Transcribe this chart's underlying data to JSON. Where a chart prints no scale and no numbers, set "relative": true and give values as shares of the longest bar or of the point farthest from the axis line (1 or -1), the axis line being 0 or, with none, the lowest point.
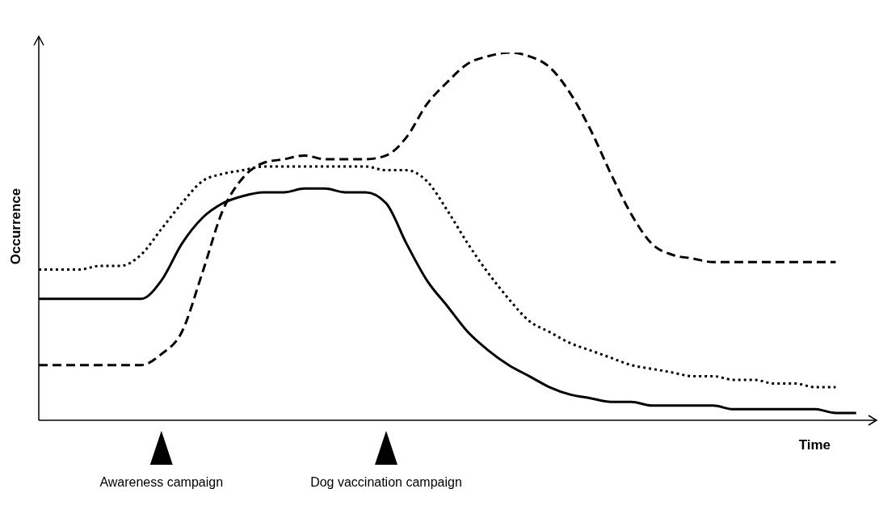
{
  "chart_data": {
    "type": "line",
    "xlabel": "Time",
    "ylabel": "Occurrence",
    "relative": true,
    "tick_labels": false,
    "categories": [
      null,
      null,
      null,
      null,
      null,
      null,
      null,
      null,
      null,
      null,
      null,
      null,
      null,
      null,
      null,
      null,
      null,
      null,
      null,
      null,
      null,
      null,
      null,
      null,
      null,
      null,
      null,
      null,
      null,
      null,
      null,
      null,
      null,
      null,
      null,
      null,
      null,
      null,
      null,
      null,
      null
    ],
    "series": [
      {
        "color": "#000000",
        "line_style": "solid",
        "values": [
          0.33,
          0.33,
          0.33,
          0.33,
          0.33,
          0.33,
          0.38,
          0.48,
          0.55,
          0.59,
          0.61,
          0.62,
          0.62,
          0.63,
          0.63,
          0.62,
          0.62,
          0.59,
          0.48,
          0.38,
          0.31,
          0.24,
          0.19,
          0.15,
          0.12,
          0.09,
          0.07,
          0.06,
          0.05,
          0.05,
          0.04,
          0.04,
          0.04,
          0.04,
          0.03,
          0.03,
          0.03,
          0.03,
          0.03,
          0.02,
          0.02
        ]
      },
      {
        "color": "#000000",
        "line_style": "dotted",
        "values": [
          0.41,
          0.41,
          0.41,
          0.42,
          0.42,
          0.45,
          0.52,
          0.59,
          0.65,
          0.67,
          0.68,
          0.69,
          0.69,
          0.69,
          0.69,
          0.69,
          0.69,
          0.68,
          0.68,
          0.65,
          0.57,
          0.48,
          0.4,
          0.33,
          0.27,
          0.24,
          0.21,
          0.19,
          0.17,
          0.15,
          0.14,
          0.13,
          0.12,
          0.12,
          0.11,
          0.11,
          0.1,
          0.1,
          0.09,
          0.09,
          null
        ]
      },
      {
        "color": "#000000",
        "line_style": "dashed",
        "values": [
          0.15,
          0.15,
          0.15,
          0.15,
          0.15,
          0.15,
          0.18,
          0.24,
          0.4,
          0.57,
          0.66,
          0.7,
          0.71,
          0.72,
          0.71,
          0.71,
          0.71,
          0.72,
          0.77,
          0.86,
          0.92,
          0.97,
          0.99,
          1,
          0.99,
          0.96,
          0.89,
          0.79,
          0.67,
          0.56,
          0.48,
          0.45,
          0.44,
          0.43,
          0.43,
          0.43,
          0.43,
          0.43,
          0.43,
          0.43,
          null
        ]
      }
    ],
    "annotations": [
      "Awareness campaign",
      "Dog vaccination campaign"
    ]
  }
}
